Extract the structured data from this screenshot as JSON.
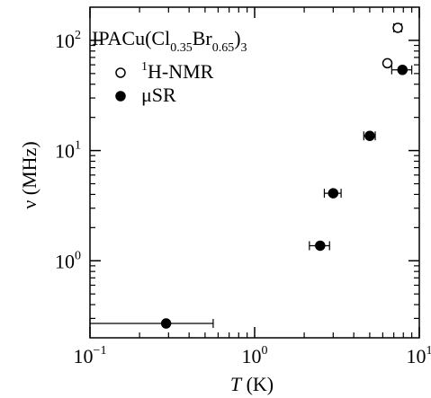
{
  "chart_data": {
    "type": "scatter",
    "title": {
      "prefix": "IPACu(Cl",
      "sub1": "0.35",
      "mid": "Br",
      "sub2": "0.65",
      "suffix": ")",
      "sub3": "3"
    },
    "xlabel": {
      "var": "T",
      "unit": " (K)"
    },
    "ylabel": "ν (MHz)",
    "x_scale": "log",
    "y_scale": "log",
    "xlim": [
      0.1,
      10
    ],
    "ylim": [
      0.2,
      200
    ],
    "x_ticks": [
      {
        "value": 0.1,
        "base": "10",
        "exp": "−1"
      },
      {
        "value": 1,
        "base": "10",
        "exp": "0"
      },
      {
        "value": 10,
        "base": "10",
        "exp": "1"
      }
    ],
    "y_ticks": [
      {
        "value": 1,
        "base": "10",
        "exp": "0"
      },
      {
        "value": 10,
        "base": "10",
        "exp": "1"
      },
      {
        "value": 100,
        "base": "10",
        "exp": "2"
      }
    ],
    "legend_position": "top-left",
    "series": [
      {
        "name_sup": "1",
        "name": "H-NMR",
        "marker": "open-circle",
        "points": [
          {
            "x": 7.4,
            "y": 130,
            "xerr": [
              7.0,
              7.8
            ]
          },
          {
            "x": 6.4,
            "y": 62,
            "xerr": null
          }
        ]
      },
      {
        "name_sup": "",
        "name": "μSR",
        "marker": "filled-circle",
        "points": [
          {
            "x": 0.29,
            "y": 0.27,
            "xerr": [
              0.1,
              0.56
            ]
          },
          {
            "x": 2.5,
            "y": 1.37,
            "xerr": [
              2.15,
              2.85
            ]
          },
          {
            "x": 3.0,
            "y": 4.1,
            "xerr": [
              2.65,
              3.35
            ]
          },
          {
            "x": 5.0,
            "y": 13.6,
            "xerr": [
              4.6,
              5.4
            ]
          },
          {
            "x": 7.9,
            "y": 54,
            "xerr": [
              6.8,
              9.0
            ]
          }
        ]
      }
    ]
  }
}
